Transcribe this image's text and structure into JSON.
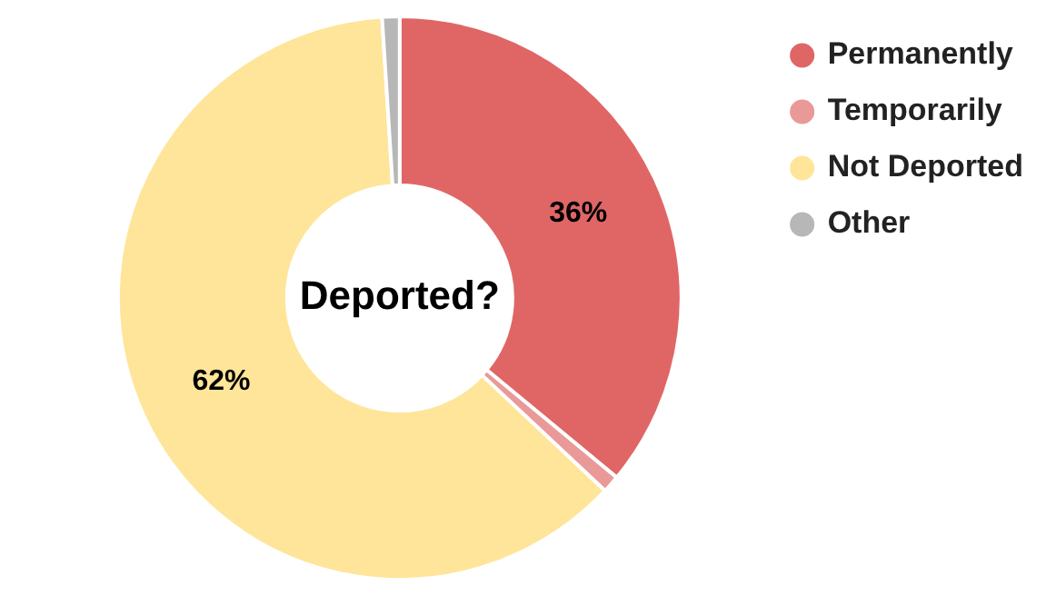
{
  "chart_data": {
    "type": "donut",
    "title": "Deported?",
    "categories": [
      "Permanently",
      "Temporarily",
      "Not Deported",
      "Other"
    ],
    "values": [
      36,
      1,
      62,
      1
    ],
    "colors": [
      "#e06666",
      "#ea9999",
      "#ffe599",
      "#b7b7b7"
    ],
    "value_labels": [
      "36%",
      null,
      "62%",
      null
    ],
    "legend": "top right"
  }
}
